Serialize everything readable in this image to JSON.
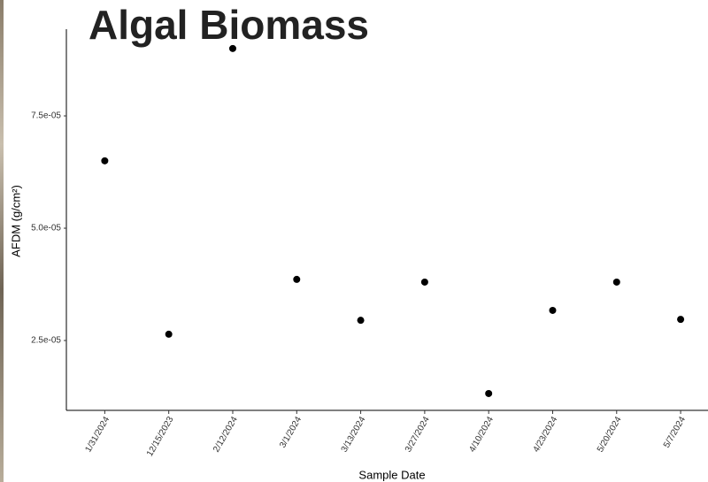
{
  "chart_data": {
    "type": "scatter",
    "title": "Algal Biomass",
    "x_label": "Sample Date",
    "y_label": "AFDM (g/cm²)",
    "categories": [
      "1/31/2024",
      "12/15/2023",
      "2/12/2024",
      "3/1/2024",
      "3/13/2024",
      "3/27/2024",
      "4/10/2024",
      "4/23/2024",
      "5/20/2024",
      "5/7/2024"
    ],
    "values": [
      6.5e-05,
      2.64e-05,
      9e-05,
      3.86e-05,
      2.95e-05,
      3.8e-05,
      1.32e-05,
      3.17e-05,
      3.8e-05,
      2.97e-05
    ],
    "color": "#000000",
    "ylim": [
      9.45e-06,
      9.43e-05
    ],
    "yticks": [
      {
        "value": 2.5e-05,
        "label": "2.5e-05"
      },
      {
        "value": 5e-05,
        "label": "5.0e-05"
      },
      {
        "value": 7.5e-05,
        "label": "7.5e-05"
      }
    ],
    "grid": false
  }
}
